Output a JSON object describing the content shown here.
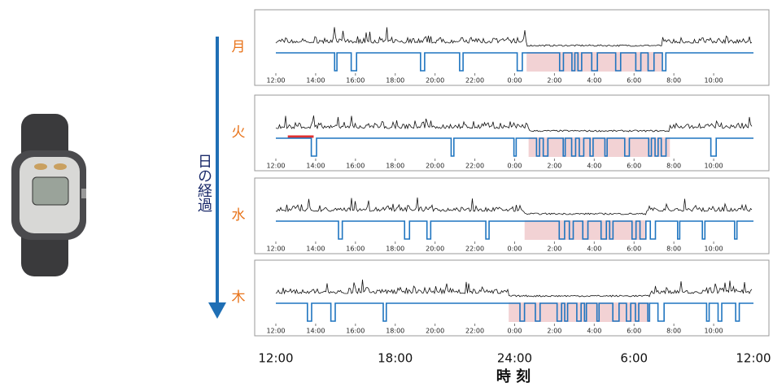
{
  "figure": {
    "arrow_label": "日の経過",
    "x_label": "時 刻",
    "xlim": [
      0,
      24
    ],
    "xticks": [
      {
        "value": 0,
        "label": "12:00"
      },
      {
        "value": 6,
        "label": "18:00"
      },
      {
        "value": 12,
        "label": "24:00"
      },
      {
        "value": 18,
        "label": "6:00"
      },
      {
        "value": 24,
        "label": "12:00"
      }
    ]
  },
  "chart_data": [
    {
      "type": "line",
      "label": "月",
      "xlim": [
        0,
        24
      ],
      "sleep": [
        12.6,
        19.4
      ],
      "xticks": [
        {
          "value": 0,
          "label": "12:00"
        },
        {
          "value": 2,
          "label": "14:00"
        },
        {
          "value": 4,
          "label": "16:00"
        },
        {
          "value": 6,
          "label": "18:00"
        },
        {
          "value": 8,
          "label": "20:00"
        },
        {
          "value": 10,
          "label": "22:00"
        },
        {
          "value": 12,
          "label": "0:00"
        },
        {
          "value": 14,
          "label": "2:00"
        },
        {
          "value": 16,
          "label": "4:00"
        },
        {
          "value": 18,
          "label": "6:00"
        },
        {
          "value": 20,
          "label": "8:00"
        },
        {
          "value": 22,
          "label": "10:00"
        }
      ]
    },
    {
      "type": "line",
      "label": "火",
      "xlim": [
        0,
        24
      ],
      "sleep": [
        12.7,
        19.8
      ],
      "highlight": [
        0.6,
        1.9
      ],
      "highlight_color": "#e03030",
      "xticks": [
        {
          "value": 0,
          "label": "12:00"
        },
        {
          "value": 2,
          "label": "14:00"
        },
        {
          "value": 4,
          "label": "16:00"
        },
        {
          "value": 6,
          "label": "18:00"
        },
        {
          "value": 8,
          "label": "20:00"
        },
        {
          "value": 10,
          "label": "22:00"
        },
        {
          "value": 12,
          "label": "0:00"
        },
        {
          "value": 14,
          "label": "2:00"
        },
        {
          "value": 16,
          "label": "4:00"
        },
        {
          "value": 18,
          "label": "6:00"
        },
        {
          "value": 20,
          "label": "8:00"
        },
        {
          "value": 22,
          "label": "10:00"
        }
      ]
    },
    {
      "type": "line",
      "label": "水",
      "xlim": [
        0,
        24
      ],
      "sleep": [
        12.5,
        18.6
      ],
      "xticks": [
        {
          "value": 0,
          "label": "12:00"
        },
        {
          "value": 2,
          "label": "14:00"
        },
        {
          "value": 4,
          "label": "16:00"
        },
        {
          "value": 6,
          "label": "18:00"
        },
        {
          "value": 8,
          "label": "20:00"
        },
        {
          "value": 10,
          "label": "22:00"
        },
        {
          "value": 12,
          "label": "0:00"
        },
        {
          "value": 14,
          "label": "2:00"
        },
        {
          "value": 16,
          "label": "4:00"
        },
        {
          "value": 18,
          "label": "6:00"
        },
        {
          "value": 20,
          "label": "8:00"
        },
        {
          "value": 22,
          "label": "10:00"
        }
      ]
    },
    {
      "type": "line",
      "label": "木",
      "xlim": [
        0,
        24
      ],
      "sleep": [
        11.7,
        18.8
      ],
      "xticks": [
        {
          "value": 0,
          "label": "12:00"
        },
        {
          "value": 2,
          "label": "14:00"
        },
        {
          "value": 4,
          "label": "16:00"
        },
        {
          "value": 6,
          "label": "18:00"
        },
        {
          "value": 8,
          "label": "20:00"
        },
        {
          "value": 10,
          "label": "22:00"
        },
        {
          "value": 12,
          "label": "0:00"
        },
        {
          "value": 14,
          "label": "2:00"
        },
        {
          "value": 16,
          "label": "4:00"
        },
        {
          "value": 18,
          "label": "6:00"
        },
        {
          "value": 20,
          "label": "8:00"
        },
        {
          "value": 22,
          "label": "10:00"
        }
      ]
    }
  ]
}
